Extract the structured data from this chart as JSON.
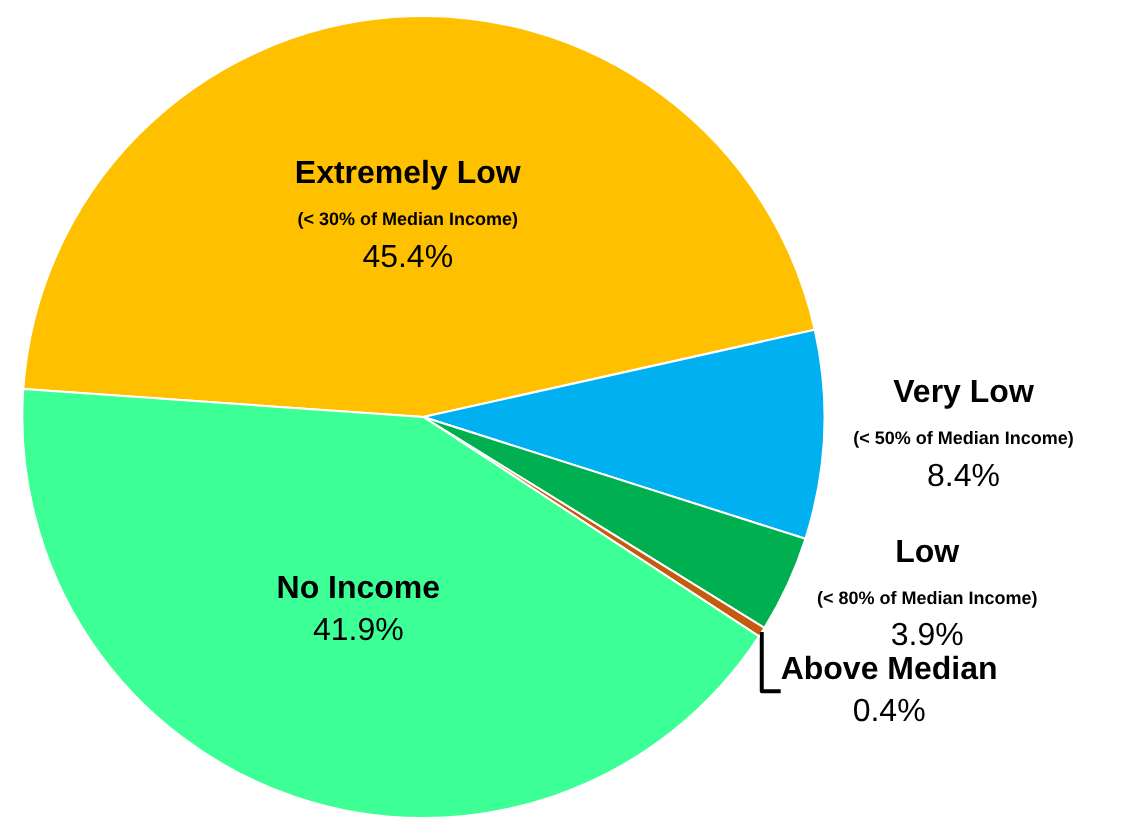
{
  "chart_data": {
    "type": "pie",
    "categories": [
      "Extremely Low",
      "Very Low",
      "Low",
      "Above Median",
      "No Income"
    ],
    "values": [
      45.4,
      8.4,
      3.9,
      0.4,
      41.9
    ],
    "colors": [
      "#ffc000",
      "#00b0f0",
      "#00b050",
      "#c55a11",
      "#3cff96"
    ],
    "value_labels": [
      "45.4%",
      "8.4%",
      "3.9%",
      "0.4%",
      "41.9%"
    ],
    "annotations": [
      {
        "text": "(< 30% of Median Income)",
        "x": "Extremely Low"
      },
      {
        "text": "(< 50% of Median Income)",
        "x": "Very Low"
      },
      {
        "text": "(< 80% of Median Income)",
        "x": "Low"
      }
    ],
    "legend": false
  }
}
